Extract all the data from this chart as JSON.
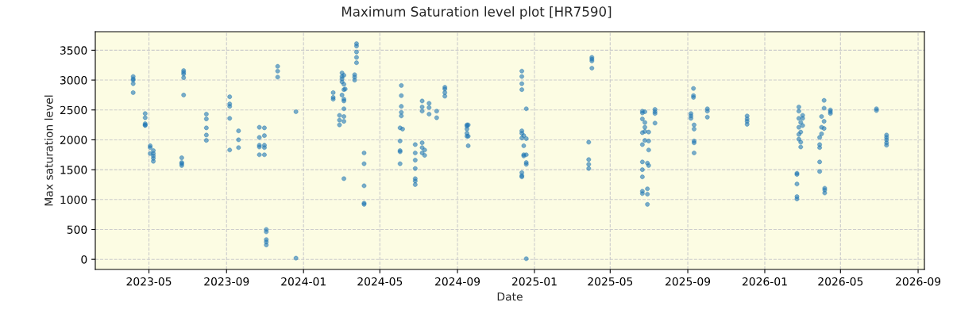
{
  "chart_data": {
    "type": "scatter",
    "title": "Maximum Saturation level plot [HR7590]",
    "xlabel": "Date",
    "ylabel": "Max saturation level",
    "color": "#1f77b4",
    "marker": "circle",
    "grid": true,
    "xlim": [
      "2023-02-05",
      "2026-09-11"
    ],
    "ylim": [
      -170,
      3810
    ],
    "yticks": [
      0,
      500,
      1000,
      1500,
      2000,
      2500,
      3000,
      3500
    ],
    "xticks": [
      "2023-05",
      "2023-09",
      "2024-01",
      "2024-05",
      "2024-09",
      "2025-01",
      "2025-05",
      "2025-09",
      "2026-01",
      "2026-05",
      "2026-09"
    ],
    "x": [
      "2023-04-06",
      "2023-04-06",
      "2023-04-06",
      "2023-04-06",
      "2023-04-06",
      "2023-04-25",
      "2023-04-25",
      "2023-04-25",
      "2023-04-25",
      "2023-04-25",
      "2023-05-03",
      "2023-05-03",
      "2023-05-03",
      "2023-05-08",
      "2023-05-08",
      "2023-05-08",
      "2023-05-08",
      "2023-05-08",
      "2023-06-22",
      "2023-06-22",
      "2023-06-22",
      "2023-06-22",
      "2023-06-25",
      "2023-06-25",
      "2023-06-25",
      "2023-06-25",
      "2023-06-25",
      "2023-07-31",
      "2023-07-31",
      "2023-07-31",
      "2023-07-31",
      "2023-07-31",
      "2023-09-06",
      "2023-09-06",
      "2023-09-06",
      "2023-09-06",
      "2023-09-06",
      "2023-09-20",
      "2023-09-20",
      "2023-09-20",
      "2023-10-23",
      "2023-10-23",
      "2023-10-23",
      "2023-10-23",
      "2023-10-23",
      "2023-10-31",
      "2023-10-31",
      "2023-10-31",
      "2023-10-31",
      "2023-10-31",
      "2023-11-03",
      "2023-11-03",
      "2023-11-03",
      "2023-11-03",
      "2023-11-03",
      "2023-11-21",
      "2023-11-21",
      "2023-11-21",
      "2023-12-20",
      "2023-12-20",
      "2024-02-17",
      "2024-02-17",
      "2024-02-17",
      "2024-02-27",
      "2024-02-27",
      "2024-02-27",
      "2024-03-02",
      "2024-03-02",
      "2024-03-02",
      "2024-03-02",
      "2024-03-02",
      "2024-03-05",
      "2024-03-05",
      "2024-03-05",
      "2024-03-05",
      "2024-03-05",
      "2024-03-05",
      "2024-03-05",
      "2024-03-05",
      "2024-03-05",
      "2024-03-07",
      "2024-03-22",
      "2024-03-22",
      "2024-03-22",
      "2024-03-25",
      "2024-03-25",
      "2024-03-25",
      "2024-03-25",
      "2024-03-25",
      "2024-04-06",
      "2024-04-06",
      "2024-04-06",
      "2024-04-06",
      "2024-04-06",
      "2024-06-02",
      "2024-06-02",
      "2024-06-02",
      "2024-06-02",
      "2024-06-02",
      "2024-06-04",
      "2024-06-04",
      "2024-06-04",
      "2024-06-04",
      "2024-06-04",
      "2024-06-06",
      "2024-06-26",
      "2024-06-26",
      "2024-06-26",
      "2024-06-26",
      "2024-06-26",
      "2024-06-26",
      "2024-06-26",
      "2024-07-07",
      "2024-07-07",
      "2024-07-07",
      "2024-07-07",
      "2024-07-07",
      "2024-07-07",
      "2024-07-11",
      "2024-07-11",
      "2024-07-18",
      "2024-07-18",
      "2024-07-18",
      "2024-07-30",
      "2024-07-30",
      "2024-08-12",
      "2024-08-12",
      "2024-08-12",
      "2024-08-12",
      "2024-09-16",
      "2024-09-16",
      "2024-09-16",
      "2024-09-16",
      "2024-09-16",
      "2024-09-18",
      "2024-09-18",
      "2024-09-18",
      "2024-12-12",
      "2024-12-12",
      "2024-12-12",
      "2024-12-12",
      "2024-12-12",
      "2024-12-12",
      "2024-12-12",
      "2024-12-12",
      "2024-12-12",
      "2024-12-12",
      "2024-12-15",
      "2024-12-15",
      "2024-12-15",
      "2024-12-15",
      "2024-12-19",
      "2024-12-19",
      "2024-12-19",
      "2024-12-19",
      "2024-12-19",
      "2024-12-19",
      "2025-03-28",
      "2025-03-28",
      "2025-03-28",
      "2025-03-28",
      "2025-04-02",
      "2025-04-02",
      "2025-04-02",
      "2025-04-02",
      "2025-06-21",
      "2025-06-21",
      "2025-06-21",
      "2025-06-21",
      "2025-06-21",
      "2025-06-21",
      "2025-06-21",
      "2025-06-21",
      "2025-06-21",
      "2025-06-21",
      "2025-06-25",
      "2025-06-25",
      "2025-06-25",
      "2025-06-25",
      "2025-06-25",
      "2025-06-29",
      "2025-06-29",
      "2025-06-29",
      "2025-06-29",
      "2025-07-01",
      "2025-07-01",
      "2025-07-01",
      "2025-07-01",
      "2025-07-11",
      "2025-07-11",
      "2025-07-11",
      "2025-07-11",
      "2025-09-06",
      "2025-09-06",
      "2025-09-06",
      "2025-09-10",
      "2025-09-10",
      "2025-09-10",
      "2025-09-11",
      "2025-09-11",
      "2025-09-11",
      "2025-09-11",
      "2025-09-11",
      "2025-10-02",
      "2025-10-02",
      "2025-10-02",
      "2025-12-04",
      "2025-12-04",
      "2025-12-04",
      "2025-12-04",
      "2026-02-21",
      "2026-02-21",
      "2026-02-21",
      "2026-02-21",
      "2026-02-21",
      "2026-02-24",
      "2026-02-24",
      "2026-02-24",
      "2026-02-24",
      "2026-02-24",
      "2026-02-24",
      "2026-02-27",
      "2026-02-27",
      "2026-02-27",
      "2026-02-27",
      "2026-03-02",
      "2026-03-02",
      "2026-03-02",
      "2026-03-29",
      "2026-03-29",
      "2026-03-29",
      "2026-03-29",
      "2026-03-29",
      "2026-04-01",
      "2026-04-01",
      "2026-04-01",
      "2026-04-05",
      "2026-04-05",
      "2026-04-05",
      "2026-04-05",
      "2026-04-06",
      "2026-04-06",
      "2026-04-06",
      "2026-04-15",
      "2026-04-15",
      "2026-04-15",
      "2026-06-27",
      "2026-06-27",
      "2026-07-13",
      "2026-07-13",
      "2026-07-13",
      "2026-07-13",
      "2026-07-13"
    ],
    "values": [
      3060,
      3020,
      3000,
      2940,
      2790,
      2440,
      2370,
      2270,
      2250,
      2240,
      1900,
      1870,
      1770,
      1820,
      1770,
      1730,
      1690,
      1640,
      1700,
      1620,
      1600,
      1570,
      3160,
      3130,
      3100,
      3040,
      2750,
      2430,
      2350,
      2200,
      2080,
      1990,
      2720,
      2600,
      2560,
      2360,
      1830,
      2150,
      2000,
      1870,
      2210,
      2040,
      1910,
      1880,
      1750,
      2200,
      2070,
      1910,
      1870,
      1750,
      500,
      460,
      330,
      290,
      240,
      3230,
      3150,
      3050,
      2470,
      20,
      2790,
      2710,
      2680,
      2410,
      2330,
      2250,
      3120,
      3060,
      3020,
      2970,
      2750,
      3080,
      2930,
      2840,
      2680,
      2650,
      2520,
      2390,
      2310,
      1350,
      2850,
      3090,
      3050,
      3000,
      3610,
      3570,
      3470,
      3380,
      3290,
      1780,
      1600,
      1230,
      940,
      920,
      2200,
      1980,
      1820,
      1800,
      1600,
      2910,
      2740,
      2560,
      2460,
      2400,
      2180,
      1920,
      1780,
      1660,
      1520,
      1350,
      1310,
      1250,
      2650,
      2550,
      2480,
      1950,
      1870,
      1780,
      1830,
      1740,
      2610,
      2540,
      2430,
      2480,
      2370,
      2880,
      2850,
      2790,
      2730,
      2250,
      2230,
      2180,
      2110,
      2060,
      2250,
      2060,
      1900,
      3150,
      3060,
      2940,
      2840,
      2150,
      2110,
      2030,
      1450,
      1400,
      1380,
      2070,
      1900,
      1750,
      1730,
      2520,
      2020,
      1750,
      1620,
      1590,
      10,
      1960,
      1670,
      1590,
      1520,
      3380,
      3350,
      3320,
      3200,
      2480,
      2450,
      2350,
      2120,
      1920,
      1630,
      1500,
      1380,
      1140,
      1100,
      2470,
      2290,
      2210,
      2140,
      1990,
      1610,
      1180,
      1090,
      920,
      2130,
      1980,
      1830,
      1570,
      2510,
      2470,
      2440,
      2280,
      2440,
      2400,
      2360,
      2860,
      2740,
      2710,
      2250,
      2180,
      1980,
      1950,
      1780,
      2520,
      2480,
      2380,
      2400,
      2350,
      2310,
      2260,
      1440,
      1420,
      1260,
      1050,
      1010,
      2550,
      2480,
      2360,
      2210,
      2090,
      2010,
      2290,
      2130,
      1960,
      1880,
      2410,
      2360,
      2240,
      2040,
      1920,
      1870,
      1630,
      1470,
      2390,
      2210,
      2100,
      2660,
      2530,
      2310,
      2190,
      1190,
      1160,
      1110,
      2500,
      2470,
      2440,
      2520,
      2490,
      2080,
      2040,
      2000,
      1950,
      1910
    ]
  }
}
